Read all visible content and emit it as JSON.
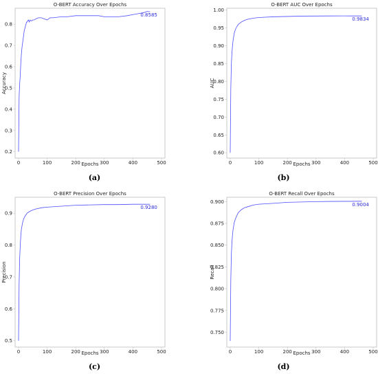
{
  "colors": {
    "line": "#4c4cff",
    "label": "#2b2bd6",
    "axis": "#bdbdbd",
    "text": "#222222"
  },
  "chart_data": [
    {
      "type": "line",
      "caption": "(a)",
      "title": "O-BERT Accuracy Over Epochs",
      "xlabel": "Epochs",
      "ylabel": "Accuracy",
      "xlim": [
        -12,
        512
      ],
      "ylim": [
        0.17,
        0.875
      ],
      "xticks": [
        0,
        100,
        200,
        300,
        400,
        500
      ],
      "yticks": [
        0.2,
        0.3,
        0.4,
        0.5,
        0.6,
        0.7,
        0.8
      ],
      "ytick_labels": [
        "0.2",
        "0.3",
        "0.4",
        "0.5",
        "0.6",
        "0.7",
        "0.8"
      ],
      "final_label": "0.8585",
      "series": [
        {
          "x": [
            0,
            2,
            4,
            6,
            8,
            10,
            12,
            15,
            18,
            20,
            24,
            28,
            30,
            34,
            38,
            40,
            45,
            50,
            55,
            60,
            70,
            80,
            90,
            100,
            110,
            120,
            150,
            170,
            200,
            220,
            250,
            280,
            300,
            320,
            350,
            380,
            400,
            420,
            440,
            450,
            460
          ],
          "y": [
            0.2,
            0.46,
            0.52,
            0.56,
            0.62,
            0.66,
            0.69,
            0.72,
            0.75,
            0.77,
            0.79,
            0.81,
            0.81,
            0.82,
            0.81,
            0.82,
            0.815,
            0.82,
            0.82,
            0.825,
            0.83,
            0.83,
            0.825,
            0.82,
            0.83,
            0.83,
            0.835,
            0.835,
            0.84,
            0.84,
            0.84,
            0.84,
            0.835,
            0.835,
            0.835,
            0.84,
            0.845,
            0.85,
            0.855,
            0.86,
            0.8585
          ]
        }
      ]
    },
    {
      "type": "line",
      "caption": "(b)",
      "title": "O-BERT AUC Over Epochs",
      "xlabel": "Epochs",
      "ylabel": "AUC",
      "xlim": [
        -12,
        512
      ],
      "ylim": [
        0.585,
        1.005
      ],
      "xticks": [
        0,
        100,
        200,
        300,
        400,
        500
      ],
      "yticks": [
        0.6,
        0.65,
        0.7,
        0.75,
        0.8,
        0.85,
        0.9,
        0.95,
        1.0
      ],
      "ytick_labels": [
        "0.60",
        "0.65",
        "0.70",
        "0.75",
        "0.80",
        "0.85",
        "0.90",
        "0.95",
        "1.00"
      ],
      "final_label": "0.9834",
      "series": [
        {
          "x": [
            0,
            2,
            4,
            6,
            8,
            10,
            14,
            18,
            22,
            26,
            30,
            40,
            50,
            60,
            80,
            100,
            150,
            200,
            250,
            300,
            350,
            400,
            460
          ],
          "y": [
            0.6,
            0.78,
            0.85,
            0.88,
            0.9,
            0.915,
            0.935,
            0.945,
            0.952,
            0.957,
            0.961,
            0.967,
            0.971,
            0.974,
            0.977,
            0.979,
            0.981,
            0.982,
            0.983,
            0.9832,
            0.9834,
            0.9835,
            0.9834
          ]
        }
      ]
    },
    {
      "type": "line",
      "caption": "(c)",
      "title": "O-BERT Precision Over Epochs",
      "xlabel": "Epochs",
      "ylabel": "Precision",
      "xlim": [
        -12,
        512
      ],
      "ylim": [
        0.48,
        0.95
      ],
      "xticks": [
        0,
        100,
        200,
        300,
        400,
        500
      ],
      "yticks": [
        0.5,
        0.6,
        0.7,
        0.8,
        0.9
      ],
      "ytick_labels": [
        "0.5",
        "0.6",
        "0.7",
        "0.8",
        "0.9"
      ],
      "final_label": "0.9280",
      "series": [
        {
          "x": [
            0,
            2,
            4,
            6,
            8,
            10,
            14,
            18,
            22,
            26,
            30,
            40,
            50,
            60,
            80,
            100,
            150,
            200,
            250,
            300,
            350,
            400,
            460
          ],
          "y": [
            0.5,
            0.68,
            0.76,
            0.8,
            0.83,
            0.85,
            0.87,
            0.882,
            0.89,
            0.895,
            0.9,
            0.906,
            0.91,
            0.913,
            0.917,
            0.919,
            0.922,
            0.925,
            0.926,
            0.927,
            0.927,
            0.928,
            0.928
          ]
        }
      ]
    },
    {
      "type": "line",
      "caption": "(d)",
      "title": "O-BERT Recall Over Epochs",
      "xlabel": "Epochs",
      "ylabel": "Recall",
      "xlim": [
        -12,
        512
      ],
      "ylim": [
        0.733,
        0.905
      ],
      "xticks": [
        0,
        100,
        200,
        300,
        400,
        500
      ],
      "yticks": [
        0.75,
        0.775,
        0.8,
        0.825,
        0.85,
        0.875,
        0.9
      ],
      "ytick_labels": [
        "0.750",
        "0.775",
        "0.800",
        "0.825",
        "0.850",
        "0.875",
        "0.900"
      ],
      "final_label": "0.9004",
      "series": [
        {
          "x": [
            0,
            2,
            4,
            6,
            8,
            10,
            14,
            18,
            22,
            26,
            30,
            40,
            50,
            60,
            80,
            100,
            150,
            200,
            250,
            300,
            350,
            400,
            460
          ],
          "y": [
            0.74,
            0.81,
            0.84,
            0.853,
            0.862,
            0.868,
            0.876,
            0.88,
            0.883,
            0.886,
            0.888,
            0.891,
            0.893,
            0.894,
            0.896,
            0.897,
            0.898,
            0.8992,
            0.8996,
            0.9,
            0.9002,
            0.9003,
            0.9004
          ]
        }
      ]
    }
  ]
}
